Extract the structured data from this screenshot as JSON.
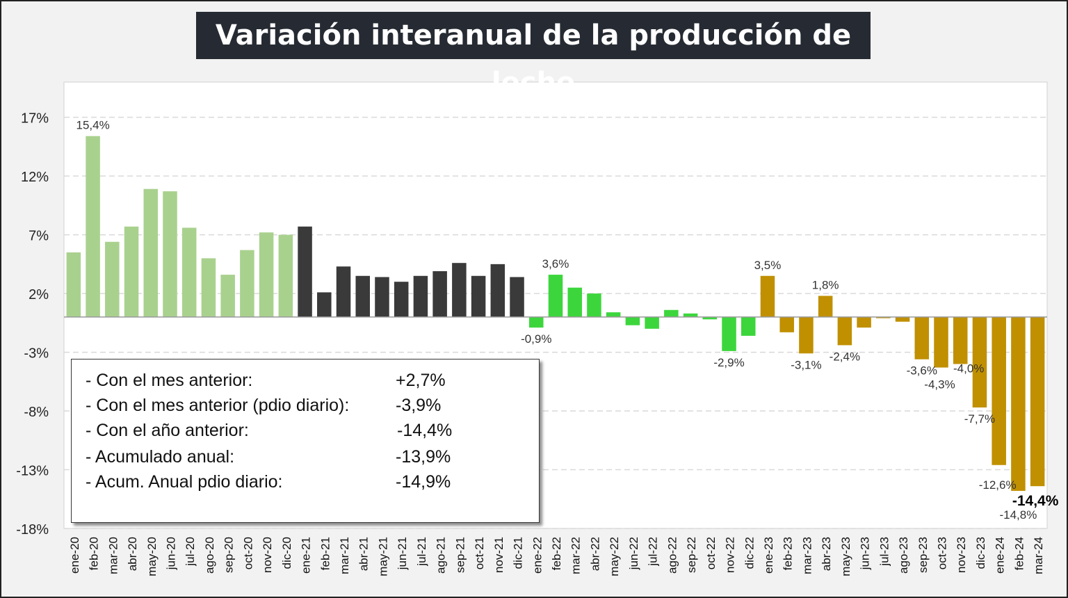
{
  "title": "Variación interanual de la producción de leche",
  "chart_data": {
    "type": "bar",
    "title": "Variación interanual de la producción de leche",
    "xlabel": "",
    "ylabel": "",
    "ylim": [
      -18,
      20
    ],
    "y_ticks": [
      "17%",
      "12%",
      "7%",
      "2%",
      "-3%",
      "-8%",
      "-13%",
      "-18%"
    ],
    "y_tick_values": [
      17,
      12,
      7,
      2,
      -3,
      -8,
      -13,
      -18
    ],
    "grid": true,
    "categories": [
      "ene-20",
      "feb-20",
      "mar-20",
      "abr-20",
      "may-20",
      "jun-20",
      "jul-20",
      "ago-20",
      "sep-20",
      "oct-20",
      "nov-20",
      "dic-20",
      "ene-21",
      "feb-21",
      "mar-21",
      "abr-21",
      "may-21",
      "jun-21",
      "jul-21",
      "ago-21",
      "sep-21",
      "oct-21",
      "nov-21",
      "dic-21",
      "ene-22",
      "feb-22",
      "mar-22",
      "abr-22",
      "may-22",
      "jun-22",
      "jul-22",
      "ago-22",
      "sep-22",
      "oct-22",
      "nov-22",
      "dic-22",
      "ene-23",
      "feb-23",
      "mar-23",
      "abr-23",
      "may-23",
      "jun-23",
      "jul-23",
      "ago-23",
      "sep-23",
      "oct-23",
      "nov-23",
      "dic-23",
      "ene-24",
      "feb-24",
      "mar-24"
    ],
    "values": [
      5.5,
      15.4,
      6.4,
      7.7,
      10.9,
      10.7,
      7.6,
      5.0,
      3.6,
      5.7,
      7.2,
      7.0,
      7.7,
      2.1,
      4.3,
      3.5,
      3.4,
      3.0,
      3.5,
      3.9,
      4.6,
      3.5,
      4.5,
      3.4,
      -0.9,
      3.6,
      2.5,
      2.0,
      0.4,
      -0.7,
      -1.0,
      0.6,
      0.3,
      -0.2,
      -2.9,
      -1.6,
      3.5,
      -1.3,
      -3.1,
      1.8,
      -2.4,
      -0.9,
      -0.1,
      -0.4,
      -3.6,
      -4.3,
      -4.0,
      -7.7,
      -12.6,
      -14.8,
      -14.4
    ],
    "colors": [
      "#a9d18e",
      "#a9d18e",
      "#a9d18e",
      "#a9d18e",
      "#a9d18e",
      "#a9d18e",
      "#a9d18e",
      "#a9d18e",
      "#a9d18e",
      "#a9d18e",
      "#a9d18e",
      "#a9d18e",
      "#3a3a3a",
      "#3a3a3a",
      "#3a3a3a",
      "#3a3a3a",
      "#3a3a3a",
      "#3a3a3a",
      "#3a3a3a",
      "#3a3a3a",
      "#3a3a3a",
      "#3a3a3a",
      "#3a3a3a",
      "#3a3a3a",
      "#3cd63c",
      "#3cd63c",
      "#3cd63c",
      "#3cd63c",
      "#3cd63c",
      "#3cd63c",
      "#3cd63c",
      "#3cd63c",
      "#3cd63c",
      "#3cd63c",
      "#3cd63c",
      "#3cd63c",
      "#c09000",
      "#c09000",
      "#c09000",
      "#c09000",
      "#c09000",
      "#c09000",
      "#c09000",
      "#c09000",
      "#c09000",
      "#c09000",
      "#c09000",
      "#c09000",
      "#c09000",
      "#c09000",
      "#c09000"
    ],
    "data_labels": [
      {
        "index": 1,
        "text": "15,4%"
      },
      {
        "index": 24,
        "text": "-0,9%"
      },
      {
        "index": 25,
        "text": "3,6%"
      },
      {
        "index": 34,
        "text": "-2,9%"
      },
      {
        "index": 36,
        "text": "3,5%"
      },
      {
        "index": 38,
        "text": "-3,1%"
      },
      {
        "index": 39,
        "text": "1,8%"
      },
      {
        "index": 40,
        "text": "-2,4%"
      },
      {
        "index": 44,
        "text": "-3,6%"
      },
      {
        "index": 45,
        "text": "-4,3%"
      },
      {
        "index": 46,
        "text": "-4,0%"
      },
      {
        "index": 47,
        "text": "-7,7%"
      },
      {
        "index": 48,
        "text": "-12,6%"
      },
      {
        "index": 49,
        "text": "-14,8%"
      },
      {
        "index": 50,
        "text": "-14,4%",
        "bold": true
      }
    ]
  },
  "summary": {
    "rows": [
      {
        "label": "- Con el mes anterior:",
        "value": "+2,7%"
      },
      {
        "label": "- Con el mes anterior (pdio diario):",
        "value": "-3,9%"
      },
      {
        "label": "- Con el año anterior:",
        "value": "-14,4%"
      },
      {
        "label": "- Acumulado anual:",
        "value": "-13,9%"
      },
      {
        "label": "- Acum. Anual pdio diario:",
        "value": "-14,9%"
      }
    ]
  }
}
